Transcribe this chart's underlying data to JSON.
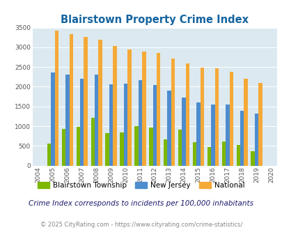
{
  "title": "Blairstown Property Crime Index",
  "years": [
    2004,
    2005,
    2006,
    2007,
    2008,
    2009,
    2010,
    2011,
    2012,
    2013,
    2014,
    2015,
    2016,
    2017,
    2018,
    2019,
    2020
  ],
  "blairstown": [
    null,
    550,
    930,
    980,
    1220,
    820,
    840,
    1000,
    960,
    670,
    910,
    600,
    470,
    620,
    530,
    360,
    null
  ],
  "new_jersey": [
    null,
    2360,
    2310,
    2210,
    2310,
    2060,
    2070,
    2160,
    2050,
    1900,
    1720,
    1610,
    1550,
    1540,
    1390,
    1310,
    null
  ],
  "national": [
    null,
    3420,
    3330,
    3260,
    3200,
    3040,
    2950,
    2900,
    2860,
    2720,
    2600,
    2490,
    2460,
    2380,
    2200,
    2100,
    null
  ],
  "blairstown_color": "#7db700",
  "new_jersey_color": "#4d8cce",
  "national_color": "#f5a937",
  "plot_bg_color": "#dce9f0",
  "ylim": [
    0,
    3500
  ],
  "yticks": [
    0,
    500,
    1000,
    1500,
    2000,
    2500,
    3000,
    3500
  ],
  "subtitle": "Crime Index corresponds to incidents per 100,000 inhabitants",
  "footer": "© 2025 CityRating.com - https://www.cityrating.com/crime-statistics/",
  "legend_labels": [
    "Blairstown Township",
    "New Jersey",
    "National"
  ],
  "title_color": "#1464a0",
  "subtitle_color": "#1a1a6e",
  "footer_color": "#888888"
}
